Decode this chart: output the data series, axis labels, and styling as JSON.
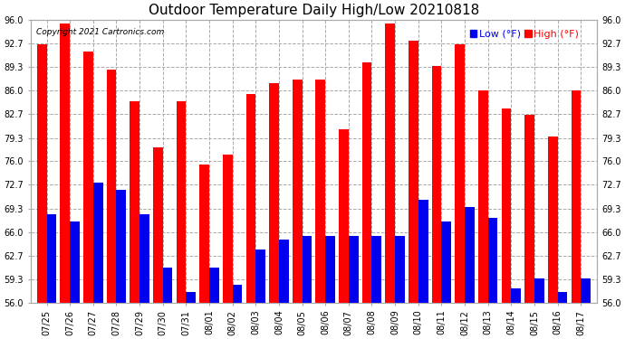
{
  "title": "Outdoor Temperature Daily High/Low 20210818",
  "copyright": "Copyright 2021 Cartronics.com",
  "legend_low_label": "Low",
  "legend_high_label": "High",
  "legend_unit": "(°F)",
  "dates": [
    "07/25",
    "07/26",
    "07/27",
    "07/28",
    "07/29",
    "07/30",
    "07/31",
    "08/01",
    "08/02",
    "08/03",
    "08/04",
    "08/05",
    "08/06",
    "08/07",
    "08/08",
    "08/09",
    "08/10",
    "08/11",
    "08/12",
    "08/13",
    "08/14",
    "08/15",
    "08/16",
    "08/17"
  ],
  "highs": [
    92.5,
    95.5,
    91.5,
    89.0,
    84.5,
    78.0,
    84.5,
    75.5,
    77.0,
    85.5,
    87.0,
    87.5,
    87.5,
    80.5,
    90.0,
    95.5,
    93.0,
    89.5,
    92.5,
    86.0,
    83.5,
    82.5,
    79.5,
    86.0
  ],
  "lows": [
    68.5,
    67.5,
    73.0,
    72.0,
    68.5,
    61.0,
    57.5,
    61.0,
    58.5,
    63.5,
    65.0,
    65.5,
    65.5,
    65.5,
    65.5,
    65.5,
    70.5,
    67.5,
    69.5,
    68.0,
    58.0,
    59.5,
    57.5,
    59.5
  ],
  "high_color": "#ff0000",
  "low_color": "#0000ee",
  "bg_color": "#ffffff",
  "grid_color": "#aaaaaa",
  "ylim_min": 56.0,
  "ylim_max": 96.0,
  "yticks": [
    56.0,
    59.3,
    62.7,
    66.0,
    69.3,
    72.7,
    76.0,
    79.3,
    82.7,
    86.0,
    89.3,
    92.7,
    96.0
  ],
  "title_fontsize": 11,
  "tick_fontsize": 7,
  "legend_fontsize": 8,
  "copyright_fontsize": 6.5
}
